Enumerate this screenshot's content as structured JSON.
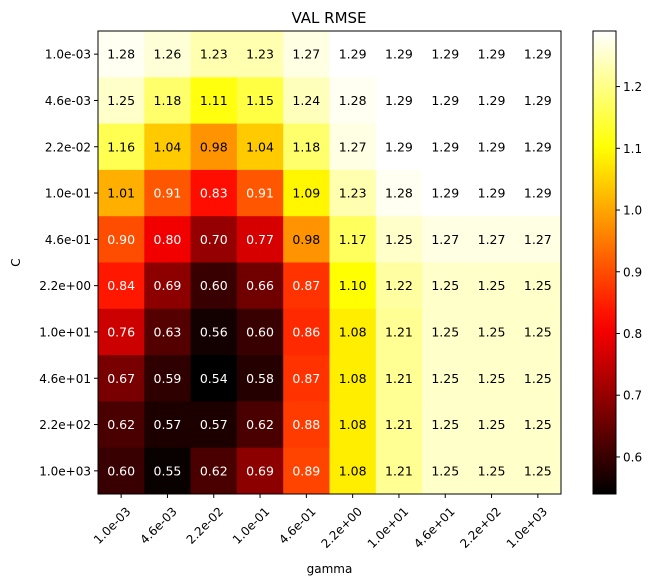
{
  "chart_data": {
    "type": "heatmap",
    "title": "VAL RMSE",
    "xlabel": "gamma",
    "ylabel": "C",
    "x_categories": [
      "1.0e-03",
      "4.6e-03",
      "2.2e-02",
      "1.0e-01",
      "4.6e-01",
      "2.2e+00",
      "1.0e+01",
      "4.6e+01",
      "2.2e+02",
      "1.0e+03"
    ],
    "y_categories": [
      "1.0e-03",
      "4.6e-03",
      "2.2e-02",
      "1.0e-01",
      "4.6e-01",
      "2.2e+00",
      "1.0e+01",
      "4.6e+01",
      "2.2e+02",
      "1.0e+03"
    ],
    "values": [
      [
        1.28,
        1.26,
        1.23,
        1.23,
        1.27,
        1.29,
        1.29,
        1.29,
        1.29,
        1.29
      ],
      [
        1.25,
        1.18,
        1.11,
        1.15,
        1.24,
        1.28,
        1.29,
        1.29,
        1.29,
        1.29
      ],
      [
        1.16,
        1.04,
        0.98,
        1.04,
        1.18,
        1.27,
        1.29,
        1.29,
        1.29,
        1.29
      ],
      [
        1.01,
        0.91,
        0.83,
        0.91,
        1.09,
        1.23,
        1.28,
        1.29,
        1.29,
        1.29
      ],
      [
        0.9,
        0.8,
        0.7,
        0.77,
        0.98,
        1.17,
        1.25,
        1.27,
        1.27,
        1.27
      ],
      [
        0.84,
        0.69,
        0.6,
        0.66,
        0.87,
        1.1,
        1.22,
        1.25,
        1.25,
        1.25
      ],
      [
        0.76,
        0.63,
        0.56,
        0.6,
        0.86,
        1.08,
        1.21,
        1.25,
        1.25,
        1.25
      ],
      [
        0.67,
        0.59,
        0.54,
        0.58,
        0.87,
        1.08,
        1.21,
        1.25,
        1.25,
        1.25
      ],
      [
        0.62,
        0.57,
        0.57,
        0.62,
        0.88,
        1.08,
        1.21,
        1.25,
        1.25,
        1.25
      ],
      [
        0.6,
        0.55,
        0.62,
        0.69,
        0.89,
        1.08,
        1.21,
        1.25,
        1.25,
        1.25
      ]
    ],
    "colormap": "hot",
    "vmin": 0.54,
    "vmax": 1.29,
    "colorbar_ticks": [
      0.6,
      0.7,
      0.8,
      0.9,
      1.0,
      1.1,
      1.2
    ],
    "colorbar_tick_labels": [
      "0.6",
      "0.7",
      "0.8",
      "0.9",
      "1.0",
      "1.1",
      "1.2"
    ],
    "x_tick_rotation_deg": 45
  }
}
